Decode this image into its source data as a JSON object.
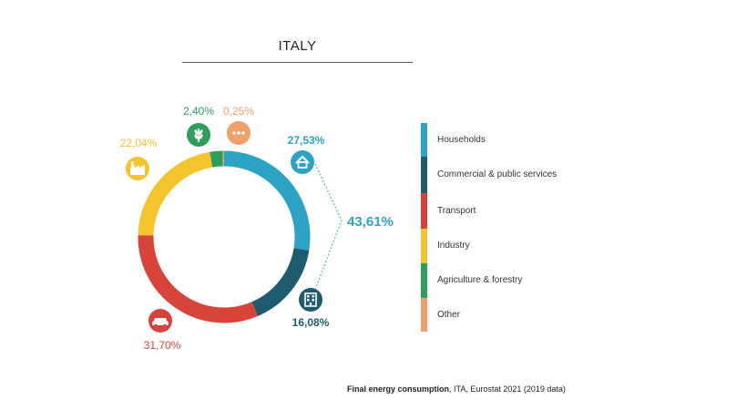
{
  "title": "ITALY",
  "chart_data": {
    "type": "donut",
    "title": "ITALY",
    "series": [
      {
        "name": "Households",
        "value": 27.53,
        "label": "27,53%",
        "color": "#2aa3c4",
        "icon": "house-icon"
      },
      {
        "name": "Commercial & public services",
        "value": 16.08,
        "label": "16,08%",
        "color": "#1d5c6e",
        "icon": "office-building-icon"
      },
      {
        "name": "Transport",
        "value": 31.7,
        "label": "31,70%",
        "color": "#d9443a",
        "icon": "car-icon"
      },
      {
        "name": "Industry",
        "value": 22.04,
        "label": "22,04%",
        "color": "#f5c32c",
        "icon": "factory-icon"
      },
      {
        "name": "Agriculture & forestry",
        "value": 2.4,
        "label": "2,40%",
        "color": "#2e9e5b",
        "icon": "wheat-icon"
      },
      {
        "name": "Other",
        "value": 0.25,
        "label": "0,25%",
        "color": "#f0a068",
        "icon": "more-dots-icon"
      }
    ],
    "bracket_total": {
      "label": "43,61%",
      "color": "#2aa3c4"
    },
    "legend_position": "right"
  },
  "source": {
    "bold": "Final energy consumption",
    "rest": ", ITA, Eurostat 2021 (2019 data)"
  }
}
